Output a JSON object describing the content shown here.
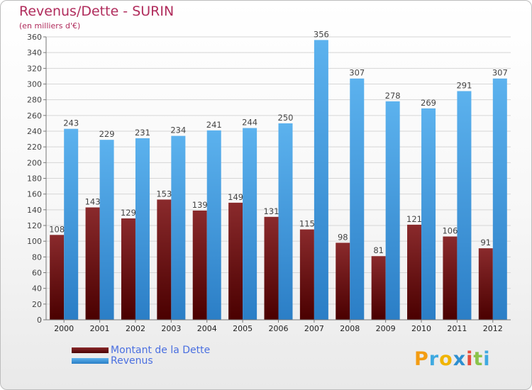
{
  "header": {
    "title": "Revenus/Dette - SURIN",
    "subtitle": "(en milliers d'€)"
  },
  "colors": {
    "dette": "#7a0f14",
    "revenus": "#4aa3e6",
    "title": "#b02c5c",
    "legend_text": "#4a6fe0"
  },
  "chart_data": {
    "type": "bar",
    "title": "Revenus/Dette - SURIN",
    "subtitle": "(en milliers d'€)",
    "xlabel": "",
    "ylabel": "",
    "ylim": [
      0,
      360
    ],
    "ytick_step": 20,
    "grid": true,
    "legend_placement": "bottom-left",
    "categories": [
      "2000",
      "2001",
      "2002",
      "2003",
      "2004",
      "2005",
      "2006",
      "2007",
      "2008",
      "2009",
      "2010",
      "2011",
      "2012"
    ],
    "series": [
      {
        "name": "Montant de la Dette",
        "values": [
          108,
          143,
          129,
          153,
          139,
          149,
          131,
          115,
          98,
          81,
          121,
          106,
          91
        ]
      },
      {
        "name": "Revenus",
        "values": [
          243,
          229,
          231,
          234,
          241,
          244,
          250,
          356,
          307,
          278,
          269,
          291,
          307
        ]
      }
    ]
  },
  "legend": {
    "items": [
      {
        "label": "Montant de la Dette"
      },
      {
        "label": "Revenus"
      }
    ]
  },
  "logo": {
    "text": "Proxiti",
    "letters": [
      "P",
      "r",
      "o",
      "x",
      "i",
      "t",
      "i"
    ],
    "letter_colors": [
      "#f39c12",
      "#3fa9e0",
      "#f0b400",
      "#2e8fd0",
      "#e74c3c",
      "#8bc34a",
      "#3fa9e0"
    ]
  }
}
